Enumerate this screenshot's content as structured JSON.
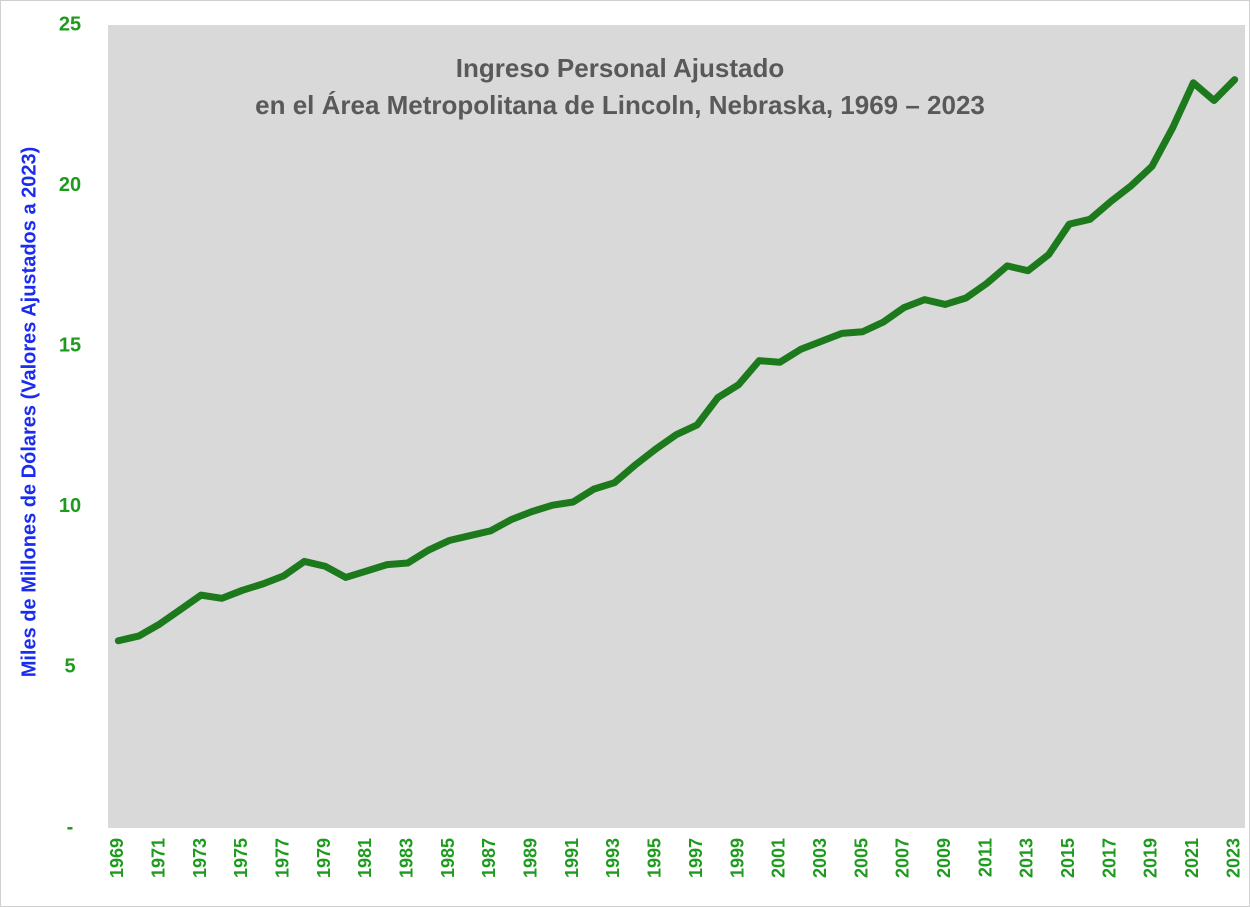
{
  "chart_data": {
    "type": "line",
    "title": [
      "Ingreso Personal Ajustado",
      "en el Área Metropolitana de Lincoln, Nebraska, 1969 – 2023"
    ],
    "y_label": "Miles de Millones de Dólares (Valores Ajustados a 2023)",
    "x": [
      1969,
      1970,
      1971,
      1972,
      1973,
      1974,
      1975,
      1976,
      1977,
      1978,
      1979,
      1980,
      1981,
      1982,
      1983,
      1984,
      1985,
      1986,
      1987,
      1988,
      1989,
      1990,
      1991,
      1992,
      1993,
      1994,
      1995,
      1996,
      1997,
      1998,
      1999,
      2000,
      2001,
      2002,
      2003,
      2004,
      2005,
      2006,
      2007,
      2008,
      2009,
      2010,
      2011,
      2012,
      2013,
      2014,
      2015,
      2016,
      2017,
      2018,
      2019,
      2020,
      2021,
      2022,
      2023
    ],
    "series": [
      {
        "color": "#1c7a1c",
        "values": [
          5.83,
          5.98,
          6.35,
          6.8,
          7.25,
          7.15,
          7.4,
          7.6,
          7.85,
          8.3,
          8.15,
          7.8,
          8.0,
          8.2,
          8.25,
          8.65,
          8.95,
          9.1,
          9.25,
          9.6,
          9.85,
          10.05,
          10.15,
          10.55,
          10.75,
          11.3,
          11.8,
          12.25,
          12.55,
          13.4,
          13.8,
          14.55,
          14.5,
          14.9,
          15.15,
          15.4,
          15.45,
          15.75,
          16.2,
          16.45,
          16.3,
          16.5,
          16.95,
          17.5,
          17.35,
          17.85,
          18.8,
          18.95,
          19.5,
          20.0,
          20.6,
          21.8,
          23.2,
          22.65,
          23.3
        ]
      }
    ],
    "xlim": [
      1968.5,
      2023.5
    ],
    "xticks": [
      1969,
      1971,
      1973,
      1975,
      1977,
      1979,
      1981,
      1983,
      1985,
      1987,
      1989,
      1991,
      1993,
      1995,
      1997,
      1999,
      2001,
      2003,
      2005,
      2007,
      2009,
      2011,
      2013,
      2015,
      2017,
      2019,
      2021,
      2023
    ],
    "ylim": [
      0,
      25
    ],
    "yticks": [
      {
        "value": 0,
        "label": "-"
      },
      5,
      10,
      15,
      20,
      25
    ],
    "plot_background": "#d9d9d9"
  }
}
